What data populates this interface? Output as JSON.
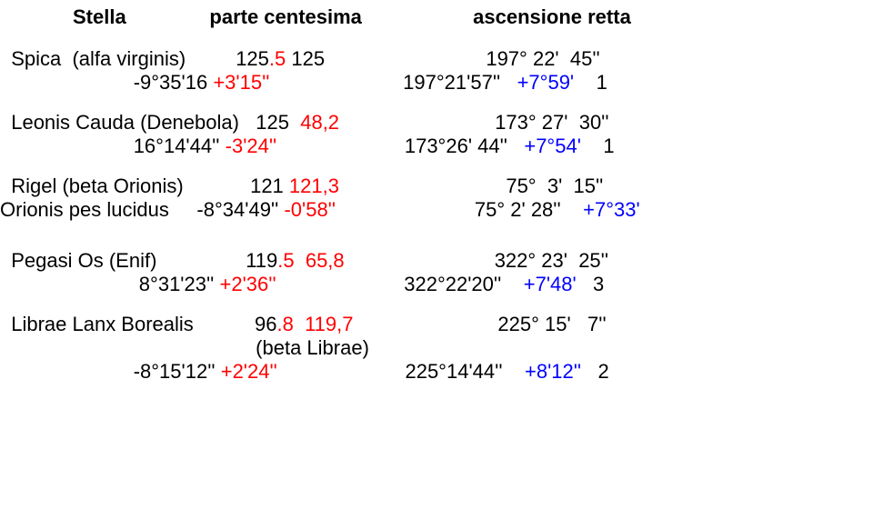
{
  "header": {
    "stella": "Stella",
    "parte": "parte centesima",
    "asc": "ascensione retta"
  },
  "stars": [
    {
      "line1": {
        "name": "  Spica  (alfa virginis)         125",
        "red": ".5",
        "mid": " 125                             197° 22'  45''",
        "rest": ""
      },
      "line2": {
        "pre": "                        -9°35'16",
        "red": " +3'15''",
        "mid": "                        197°21'57''",
        "blue": "   +7°59'",
        "tail": "    1"
      }
    },
    {
      "line1": {
        "name": "  Leonis Cauda (Denebola)   125 ",
        "red": " 48,2",
        "mid": "                            173° 27'  30''",
        "rest": ""
      },
      "line2": {
        "pre": "                        16°14'44''",
        "red": " -3'24''",
        "mid": "                       173°26' 44''",
        "blue": "   +7°54'",
        "tail": "    1"
      }
    },
    {
      "line1": {
        "name": "  Rigel (beta Orionis)            121",
        "red": " 121,3",
        "mid": "                              75°  3'  15''",
        "rest": ""
      },
      "line2": {
        "pre": "Orionis pes lucidus     -8°34'49''",
        "red": " -0'58''",
        "mid": "                         75° 2' 28''",
        "blue": "    +7°33'",
        "tail": ""
      }
    },
    {
      "line1": {
        "name": "  Pegasi Os (Enif)                119",
        "red": ".5  65,8",
        "mid": "                           322° 23'  25''",
        "rest": ""
      },
      "line2": {
        "pre": "                         8°31'23''",
        "red": " +2'36''",
        "mid": "                       322°22'20''",
        "blue": "    +7'48'",
        "tail": "   3"
      }
    },
    {
      "line1": {
        "name": "  Librae Lanx Borealis           96",
        "red": ".8  119,7",
        "mid": "                          225° 15'   7''",
        "rest": ""
      },
      "line1b": {
        "pre": "                                              (beta Librae)"
      },
      "line2": {
        "pre": "                        -8°15'12''",
        "red": " +2'24''",
        "mid": "                       225°14'44''",
        "blue": "    +8'12''",
        "tail": "   2"
      }
    }
  ]
}
